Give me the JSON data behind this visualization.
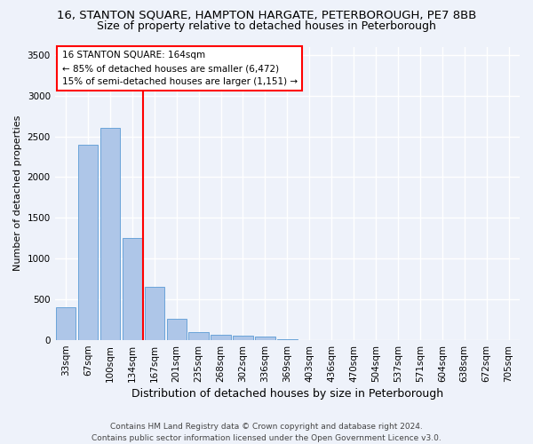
{
  "title1": "16, STANTON SQUARE, HAMPTON HARGATE, PETERBOROUGH, PE7 8BB",
  "title2": "Size of property relative to detached houses in Peterborough",
  "xlabel": "Distribution of detached houses by size in Peterborough",
  "ylabel": "Number of detached properties",
  "categories": [
    "33sqm",
    "67sqm",
    "100sqm",
    "134sqm",
    "167sqm",
    "201sqm",
    "235sqm",
    "268sqm",
    "302sqm",
    "336sqm",
    "369sqm",
    "403sqm",
    "436sqm",
    "470sqm",
    "504sqm",
    "537sqm",
    "571sqm",
    "604sqm",
    "638sqm",
    "672sqm",
    "705sqm"
  ],
  "values": [
    400,
    2400,
    2600,
    1250,
    650,
    260,
    100,
    65,
    60,
    45,
    10,
    5,
    2,
    1,
    1,
    0,
    0,
    0,
    0,
    0,
    0
  ],
  "bar_color": "#aec6e8",
  "bar_edge_color": "#5b9bd5",
  "red_line_index": 4,
  "annotation_title": "16 STANTON SQUARE: 164sqm",
  "annotation_line1": "← 85% of detached houses are smaller (6,472)",
  "annotation_line2": "15% of semi-detached houses are larger (1,151) →",
  "ylim": [
    0,
    3600
  ],
  "yticks": [
    0,
    500,
    1000,
    1500,
    2000,
    2500,
    3000,
    3500
  ],
  "footer1": "Contains HM Land Registry data © Crown copyright and database right 2024.",
  "footer2": "Contains public sector information licensed under the Open Government Licence v3.0.",
  "bg_color": "#eef2fa",
  "grid_color": "#ffffff",
  "title1_fontsize": 9.5,
  "title2_fontsize": 9,
  "annotation_fontsize": 7.5,
  "ylabel_fontsize": 8,
  "xlabel_fontsize": 9,
  "tick_fontsize": 7.5,
  "footer_fontsize": 6.5
}
